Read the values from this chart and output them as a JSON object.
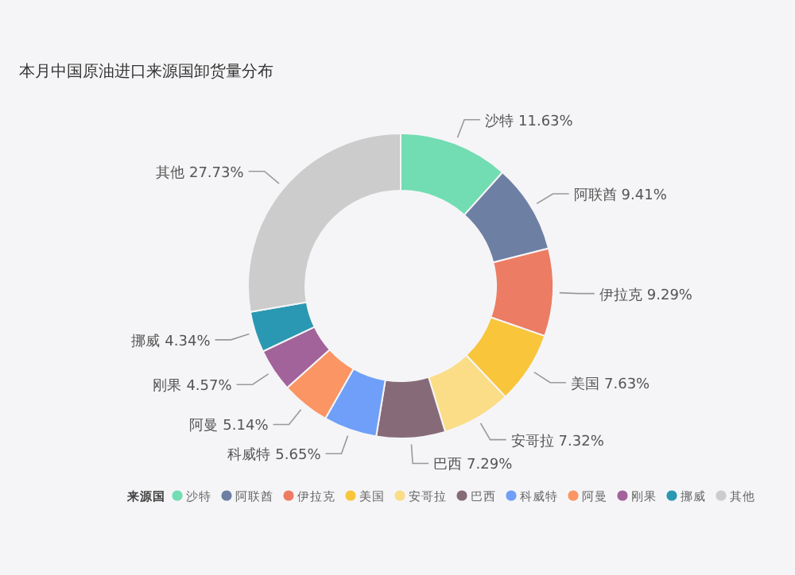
{
  "chart_data": {
    "type": "donut",
    "title": "本月中国原油进口来源国卸货量分布",
    "legend_title": "来源国",
    "legend": "bottom",
    "value_labels": [
      "11.63%",
      "9.41%",
      "9.29%",
      "7.63%",
      "7.32%",
      "7.29%",
      "5.65%",
      "5.14%",
      "4.57%",
      "4.34%",
      "27.73%"
    ],
    "categories": [
      "沙特",
      "阿联酋",
      "伊拉克",
      "美国",
      "安哥拉",
      "巴西",
      "科威特",
      "阿曼",
      "刚果",
      "挪威",
      "其他"
    ],
    "values": [
      11.63,
      9.41,
      9.29,
      7.63,
      7.32,
      7.29,
      5.65,
      5.14,
      4.57,
      4.34,
      27.73
    ],
    "colors": [
      "#72dcb2",
      "#6e7fa4",
      "#ec7c63",
      "#f8c53b",
      "#fadd86",
      "#876a78",
      "#6f9ff8",
      "#fb9563",
      "#a2639a",
      "#2a98b2",
      "#cccccc"
    ]
  }
}
